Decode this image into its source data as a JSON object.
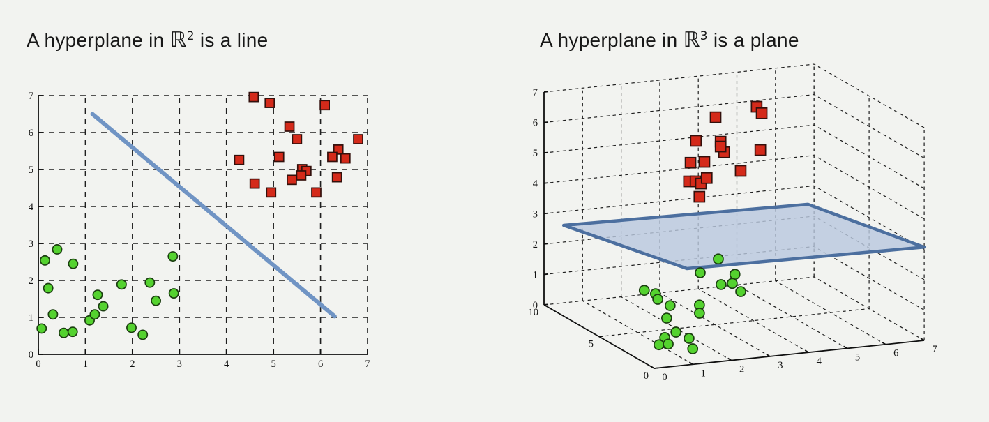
{
  "page": {
    "background": "#f2f3f0"
  },
  "chart_data": [
    {
      "type": "scatter",
      "title": {
        "prefix": "A hyperplane in ",
        "symbol": "ℝ",
        "superscript": "2",
        "suffix": " is a line"
      },
      "xlabel": "",
      "ylabel": "",
      "xlim": [
        0,
        7
      ],
      "ylim": [
        0,
        7
      ],
      "xticks": [
        0,
        1,
        2,
        3,
        4,
        5,
        6,
        7
      ],
      "yticks": [
        0,
        1,
        2,
        3,
        4,
        5,
        6,
        7
      ],
      "grid": "dashed",
      "series": [
        {
          "name": "green-class",
          "marker": "circle",
          "fill": "#54d22f",
          "edge": "#1b3e10",
          "points": [
            [
              0.4,
              2.84
            ],
            [
              0.14,
              2.54
            ],
            [
              0.74,
              2.45
            ],
            [
              0.21,
              1.79
            ],
            [
              0.31,
              1.08
            ],
            [
              0.07,
              0.7
            ],
            [
              0.54,
              0.58
            ],
            [
              0.73,
              0.61
            ],
            [
              1.09,
              0.92
            ],
            [
              1.2,
              1.08
            ],
            [
              1.38,
              1.3
            ],
            [
              1.26,
              1.61
            ],
            [
              1.77,
              1.89
            ],
            [
              2.37,
              1.94
            ],
            [
              2.5,
              1.45
            ],
            [
              2.88,
              1.65
            ],
            [
              2.86,
              2.65
            ],
            [
              1.98,
              0.72
            ],
            [
              2.22,
              0.53
            ]
          ]
        },
        {
          "name": "red-class",
          "marker": "square",
          "fill": "#d42a1a",
          "edge": "#33100c",
          "points": [
            [
              4.58,
              6.96
            ],
            [
              4.92,
              6.8
            ],
            [
              6.09,
              6.74
            ],
            [
              5.34,
              6.16
            ],
            [
              5.5,
              5.82
            ],
            [
              6.8,
              5.82
            ],
            [
              5.12,
              5.34
            ],
            [
              4.27,
              5.26
            ],
            [
              6.38,
              5.54
            ],
            [
              6.25,
              5.34
            ],
            [
              6.53,
              5.3
            ],
            [
              5.61,
              5.01
            ],
            [
              5.7,
              4.96
            ],
            [
              5.59,
              4.84
            ],
            [
              5.39,
              4.72
            ],
            [
              4.6,
              4.62
            ],
            [
              4.95,
              4.38
            ],
            [
              5.91,
              4.38
            ],
            [
              6.35,
              4.79
            ]
          ]
        }
      ],
      "hyperplane": {
        "kind": "line",
        "color": "#7094c4",
        "width": 6,
        "from": [
          1.15,
          6.5
        ],
        "to": [
          6.3,
          1.03
        ]
      }
    },
    {
      "type": "scatter3d",
      "title": {
        "prefix": "A hyperplane in ",
        "symbol": "ℝ",
        "superscript": "3",
        "suffix": " is a plane"
      },
      "xlim": [
        0,
        7
      ],
      "ylim": [
        0,
        10
      ],
      "zlim": [
        0,
        7
      ],
      "xticks": [
        0,
        1,
        2,
        3,
        4,
        5,
        6,
        7
      ],
      "yticks": [
        0,
        5,
        10
      ],
      "zticks": [
        0,
        1,
        2,
        3,
        4,
        5,
        6,
        7
      ],
      "grid": "dashed",
      "series": [
        {
          "name": "green-class",
          "marker": "circle",
          "fill": "#54d22f",
          "edge": "#1b3e10",
          "points": [
            [
              2.52,
              3,
              2.64
            ],
            [
              2.05,
              3,
              2.25
            ],
            [
              2.95,
              3,
              2.08
            ],
            [
              2.59,
              3,
              1.79
            ],
            [
              2.88,
              3,
              1.79
            ],
            [
              3.1,
              3,
              1.49
            ],
            [
              0.6,
              3,
              1.86
            ],
            [
              0.89,
              3,
              1.71
            ],
            [
              0.95,
              3,
              1.52
            ],
            [
              1.27,
              3,
              1.27
            ],
            [
              1.18,
              3,
              0.87
            ],
            [
              2.03,
              3,
              1.19
            ],
            [
              2.03,
              3,
              0.92
            ],
            [
              1.42,
              3,
              0.38
            ],
            [
              1.13,
              3,
              0.24
            ],
            [
              1.76,
              3,
              0.13
            ],
            [
              0.98,
              3,
              0.02
            ],
            [
              1.22,
              3,
              0.01
            ],
            [
              1.57,
              2,
              0.02
            ]
          ]
        },
        {
          "name": "red-class",
          "marker": "square",
          "fill": "#d42a1a",
          "edge": "#33100c",
          "points": [
            [
              3.02,
              5,
              6.82
            ],
            [
              4.37,
              6,
              6.78
            ],
            [
              4.5,
              6,
              6.55
            ],
            [
              2.51,
              5,
              6.11
            ],
            [
              3.15,
              5,
              6.0
            ],
            [
              3.24,
              5,
              5.64
            ],
            [
              3.15,
              5,
              5.84
            ],
            [
              4.18,
              5,
              5.59
            ],
            [
              2.37,
              5,
              5.41
            ],
            [
              2.73,
              5,
              5.39
            ],
            [
              3.67,
              5,
              4.97
            ],
            [
              2.33,
              5,
              4.8
            ],
            [
              2.5,
              5,
              4.78
            ],
            [
              2.64,
              5,
              4.69
            ],
            [
              2.79,
              5,
              4.85
            ],
            [
              2.6,
              5,
              4.26
            ]
          ]
        }
      ],
      "hyperplane": {
        "kind": "plane",
        "fill": "#b9c8de",
        "fill_opacity": 0.82,
        "edge": "#4c6f9f",
        "edge_width": 4.5,
        "corners": [
          [
            0.85,
            0,
            3.17
          ],
          [
            0.51,
            10,
            2.55
          ],
          [
            6.84,
            10,
            2.41
          ],
          [
            7.0,
            0,
            3.07
          ]
        ]
      }
    }
  ]
}
